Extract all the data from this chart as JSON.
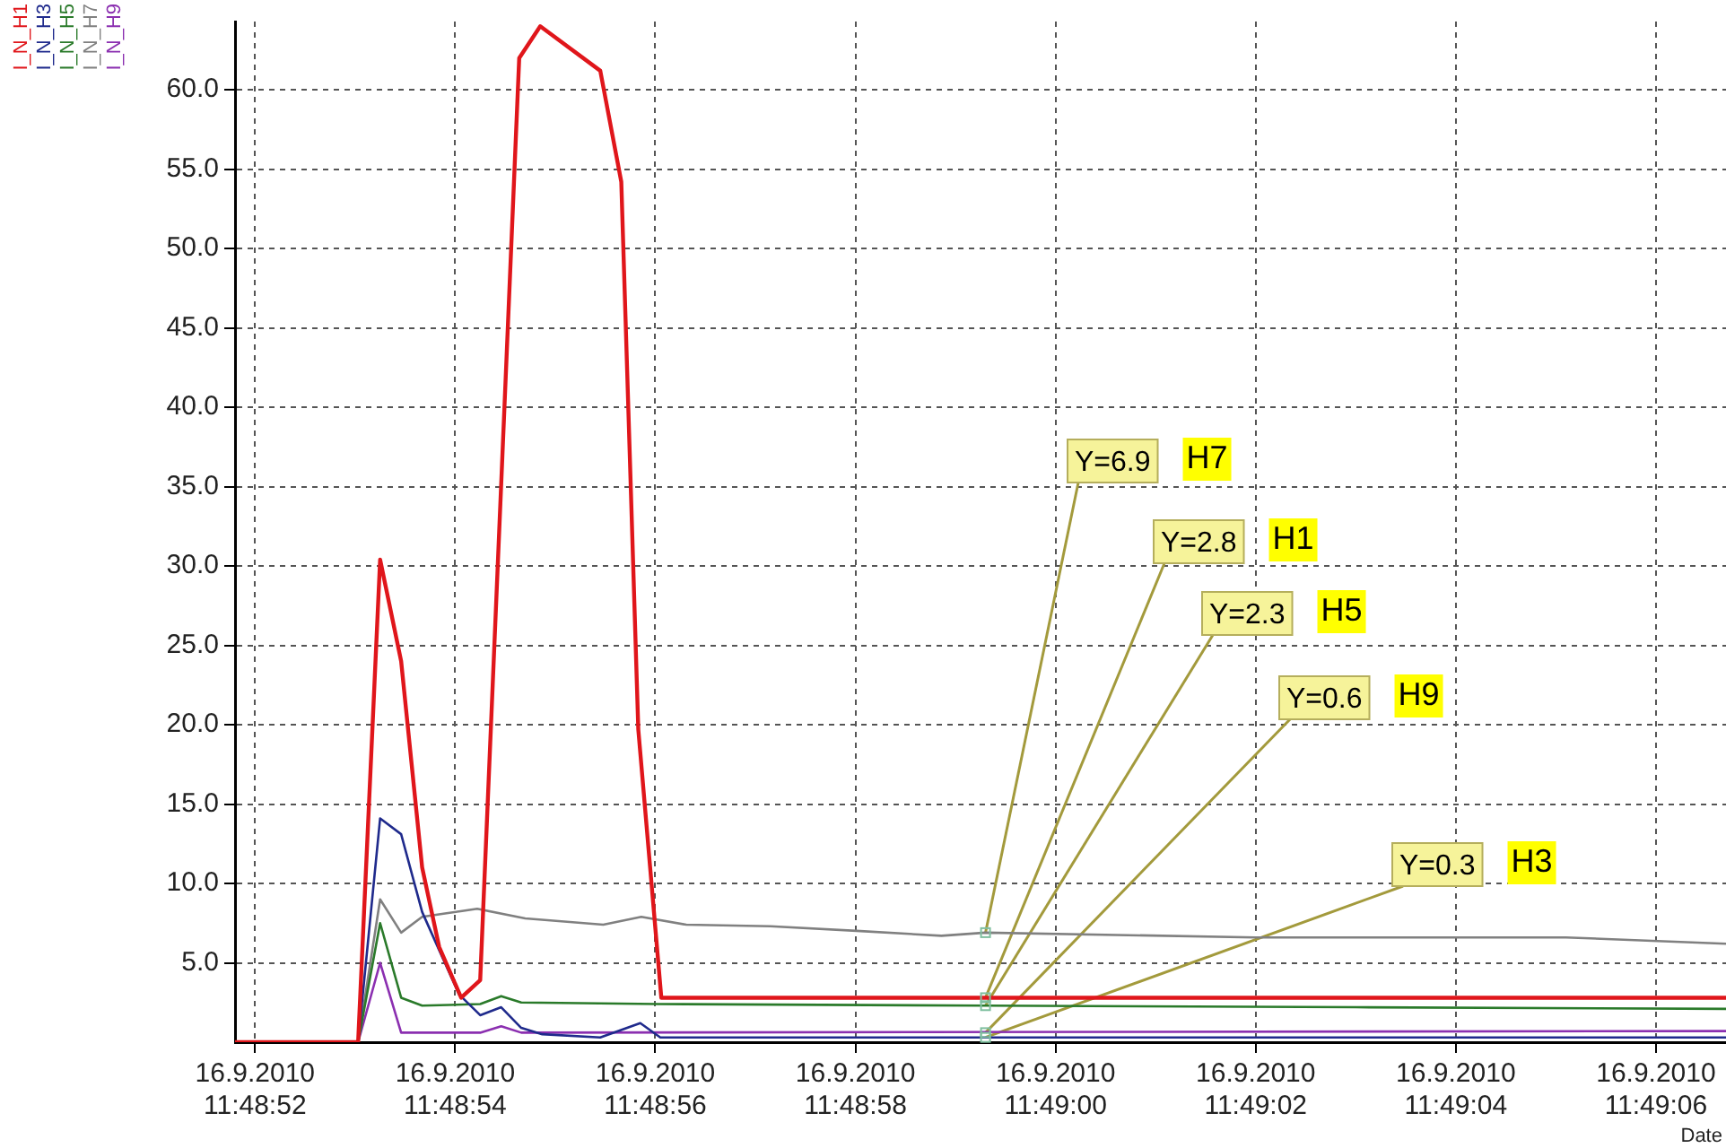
{
  "chart_data": {
    "type": "line",
    "xlabel": "Date",
    "legend": "top left",
    "grid": true,
    "marker": "none",
    "line_style": "solid",
    "xlim": [
      "2010-09-16T11:48:51.8",
      "2010-09-16T11:49:06.7"
    ],
    "xticks": [
      {
        "value": "2010-09-16T11:48:52",
        "label": "16.9.2010\n11:48:52"
      },
      {
        "value": "2010-09-16T11:48:54",
        "label": "16.9.2010\n11:48:54"
      },
      {
        "value": "2010-09-16T11:48:56",
        "label": "16.9.2010\n11:48:56"
      },
      {
        "value": "2010-09-16T11:48:58",
        "label": "16.9.2010\n11:48:58"
      },
      {
        "value": "2010-09-16T11:49:00",
        "label": "16.9.2010\n11:49:00"
      },
      {
        "value": "2010-09-16T11:49:02",
        "label": "16.9.2010\n11:49:02"
      },
      {
        "value": "2010-09-16T11:49:04",
        "label": "16.9.2010\n11:49:04"
      },
      {
        "value": "2010-09-16T11:49:06",
        "label": "16.9.2010\n11:49:06"
      }
    ],
    "ylim": [
      0,
      64.3
    ],
    "yticks": [
      {
        "value": 5,
        "label": "5.0"
      },
      {
        "value": 10,
        "label": "10.0"
      },
      {
        "value": 15,
        "label": "15.0"
      },
      {
        "value": 20,
        "label": "20.0"
      },
      {
        "value": 25,
        "label": "25.0"
      },
      {
        "value": 30,
        "label": "30.0"
      },
      {
        "value": 35,
        "label": "35.0"
      },
      {
        "value": 40,
        "label": "40.0"
      },
      {
        "value": 45,
        "label": "45.0"
      },
      {
        "value": 50,
        "label": "50.0"
      },
      {
        "value": 55,
        "label": "55.0"
      },
      {
        "value": 60,
        "label": "60.0"
      }
    ],
    "series": [
      {
        "name": "I_N_H1",
        "color": "#e0161b",
        "x": [
          "2010-09-16T11:48:51.8",
          "2010-09-16T11:48:53.03",
          "2010-09-16T11:48:53.25",
          "2010-09-16T11:48:53.46",
          "2010-09-16T11:48:53.67",
          "2010-09-16T11:48:53.84",
          "2010-09-16T11:48:54.06",
          "2010-09-16T11:48:54.25",
          "2010-09-16T11:48:54.64",
          "2010-09-16T11:48:54.85",
          "2010-09-16T11:48:55.45",
          "2010-09-16T11:48:55.66",
          "2010-09-16T11:48:55.83",
          "2010-09-16T11:48:56.06",
          "2010-09-16T11:49:06.7"
        ],
        "values": [
          0,
          0,
          30.4,
          24.0,
          11.0,
          6.0,
          2.8,
          3.9,
          62.0,
          64.0,
          61.2,
          54.2,
          19.7,
          2.8,
          2.8
        ]
      },
      {
        "name": "I_N_H3",
        "color": "#1f2a8c",
        "x": [
          "2010-09-16T11:48:51.8",
          "2010-09-16T11:48:53.03",
          "2010-09-16T11:48:53.25",
          "2010-09-16T11:48:53.46",
          "2010-09-16T11:48:53.67",
          "2010-09-16T11:48:53.84",
          "2010-09-16T11:48:54.04",
          "2010-09-16T11:48:54.25",
          "2010-09-16T11:48:54.46",
          "2010-09-16T11:48:54.66",
          "2010-09-16T11:48:54.87",
          "2010-09-16T11:48:55.45",
          "2010-09-16T11:48:55.85",
          "2010-09-16T11:48:56.05",
          "2010-09-16T11:49:06.7"
        ],
        "values": [
          0,
          0,
          14.1,
          13.1,
          8.2,
          5.8,
          3.0,
          1.7,
          2.2,
          0.9,
          0.5,
          0.3,
          1.2,
          0.3,
          0.3
        ]
      },
      {
        "name": "I_N_H5",
        "color": "#2a7a2a",
        "x": [
          "2010-09-16T11:48:51.8",
          "2010-09-16T11:48:53.03",
          "2010-09-16T11:48:53.25",
          "2010-09-16T11:48:53.46",
          "2010-09-16T11:48:53.67",
          "2010-09-16T11:48:54.25",
          "2010-09-16T11:48:54.46",
          "2010-09-16T11:48:54.66",
          "2010-09-16T11:48:56.03",
          "2010-09-16T11:48:59.3",
          "2010-09-16T11:49:03",
          "2010-09-16T11:49:06.7"
        ],
        "values": [
          0,
          0,
          7.5,
          2.8,
          2.3,
          2.4,
          2.9,
          2.5,
          2.4,
          2.3,
          2.2,
          2.1
        ]
      },
      {
        "name": "I_N_H7",
        "color": "#808080",
        "x": [
          "2010-09-16T11:48:51.8",
          "2010-09-16T11:48:53.03",
          "2010-09-16T11:48:53.25",
          "2010-09-16T11:48:53.46",
          "2010-09-16T11:48:53.67",
          "2010-09-16T11:48:54.22",
          "2010-09-16T11:48:54.7",
          "2010-09-16T11:48:55.48",
          "2010-09-16T11:48:55.86",
          "2010-09-16T11:48:56.31",
          "2010-09-16T11:48:57.15",
          "2010-09-16T11:48:58.05",
          "2010-09-16T11:48:58.86",
          "2010-09-16T11:48:59.3",
          "2010-09-16T11:49:02",
          "2010-09-16T11:49:05.1",
          "2010-09-16T11:49:06.7"
        ],
        "values": [
          0,
          0,
          9.0,
          6.9,
          7.9,
          8.4,
          7.8,
          7.4,
          7.9,
          7.4,
          7.3,
          7.0,
          6.7,
          6.9,
          6.6,
          6.6,
          6.2
        ]
      },
      {
        "name": "I_N_H9",
        "color": "#8b2fb0",
        "x": [
          "2010-09-16T11:48:51.8",
          "2010-09-16T11:48:53.03",
          "2010-09-16T11:48:53.25",
          "2010-09-16T11:48:53.46",
          "2010-09-16T11:48:54.25",
          "2010-09-16T11:48:54.46",
          "2010-09-16T11:48:54.66",
          "2010-09-16T11:49:06.7"
        ],
        "values": [
          0,
          0,
          5.0,
          0.6,
          0.6,
          1.0,
          0.6,
          0.7
        ]
      }
    ],
    "annotations": [
      {
        "text": "Y=6.9",
        "x": "2010-09-16T11:48:59.3",
        "y": 6.9
      },
      "H7",
      {
        "text": "Y=2.8",
        "x": "2010-09-16T11:48:59.3",
        "y": 2.8
      },
      "H1",
      {
        "text": "Y=2.3",
        "x": "2010-09-16T11:48:59.3",
        "y": 2.3
      },
      "H5",
      {
        "text": "Y=0.6",
        "x": "2010-09-16T11:48:59.3",
        "y": 0.6
      },
      "H9",
      {
        "text": "Y=0.3",
        "x": "2010-09-16T11:48:59.3",
        "y": 0.3
      },
      "H3"
    ]
  }
}
